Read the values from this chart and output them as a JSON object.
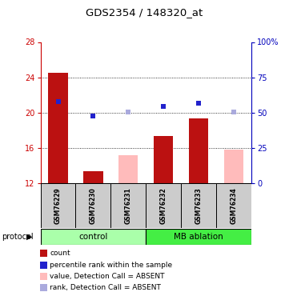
{
  "title": "GDS2354 / 148320_at",
  "samples": [
    "GSM76229",
    "GSM76230",
    "GSM76231",
    "GSM76232",
    "GSM76233",
    "GSM76234"
  ],
  "bar_values": [
    24.5,
    13.3,
    null,
    17.3,
    19.3,
    null
  ],
  "absent_bar_values": [
    null,
    null,
    15.2,
    null,
    null,
    15.8
  ],
  "blue_squares_present": [
    21.2,
    19.6,
    null,
    20.7,
    21.1,
    null
  ],
  "blue_squares_absent": [
    null,
    null,
    20.1,
    null,
    null,
    20.1
  ],
  "bar_color_present": "#bb1111",
  "bar_color_absent": "#ffbbbb",
  "blue_present": "#2222cc",
  "blue_absent": "#aaaadd",
  "ylim_left": [
    12,
    28
  ],
  "ylim_right": [
    0,
    100
  ],
  "yticks_left": [
    12,
    16,
    20,
    24,
    28
  ],
  "yticks_right": [
    0,
    25,
    50,
    75,
    100
  ],
  "ytick_labels_right": [
    "0",
    "25",
    "50",
    "75",
    "100%"
  ],
  "left_axis_color": "#cc0000",
  "right_axis_color": "#0000bb",
  "grid_lines": [
    16,
    20,
    24
  ],
  "control_color": "#aaffaa",
  "mb_color": "#44ee44",
  "legend_items": [
    {
      "marker": "s",
      "color": "#bb1111",
      "label": "count"
    },
    {
      "marker": "s",
      "color": "#2222cc",
      "label": "percentile rank within the sample"
    },
    {
      "marker": "s",
      "color": "#ffbbbb",
      "label": "value, Detection Call = ABSENT"
    },
    {
      "marker": "s",
      "color": "#aaaadd",
      "label": "rank, Detection Call = ABSENT"
    }
  ]
}
